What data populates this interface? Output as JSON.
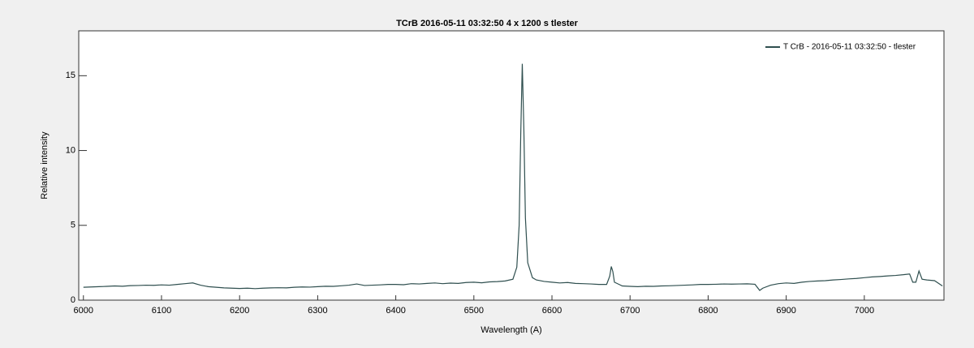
{
  "chart_data": {
    "type": "line",
    "title": "TCrB  2016-05-11 03:32:50  4 x 1200 s  tlester",
    "x_label": "Wavelength (A)",
    "y_label": "Relative intensity",
    "x": [
      6000,
      6010,
      6020,
      6030,
      6040,
      6050,
      6060,
      6070,
      6080,
      6090,
      6100,
      6110,
      6120,
      6130,
      6140,
      6150,
      6160,
      6170,
      6180,
      6190,
      6200,
      6210,
      6220,
      6230,
      6240,
      6250,
      6260,
      6270,
      6280,
      6290,
      6300,
      6310,
      6320,
      6330,
      6340,
      6350,
      6360,
      6370,
      6380,
      6390,
      6400,
      6410,
      6420,
      6430,
      6440,
      6450,
      6460,
      6470,
      6480,
      6490,
      6500,
      6510,
      6520,
      6530,
      6540,
      6550,
      6555,
      6558,
      6560,
      6562,
      6564,
      6566,
      6569,
      6575,
      6580,
      6590,
      6600,
      6610,
      6620,
      6630,
      6640,
      6650,
      6660,
      6670,
      6674,
      6676,
      6678,
      6680,
      6690,
      6700,
      6710,
      6720,
      6730,
      6740,
      6750,
      6760,
      6770,
      6780,
      6790,
      6800,
      6810,
      6820,
      6830,
      6840,
      6850,
      6860,
      6866,
      6870,
      6880,
      6890,
      6900,
      6910,
      6920,
      6930,
      6940,
      6950,
      6960,
      6970,
      6980,
      6990,
      7000,
      7010,
      7020,
      7030,
      7040,
      7050,
      7058,
      7062,
      7066,
      7070,
      7074,
      7080,
      7090,
      7100
    ],
    "series": [
      {
        "name": "T CrB - 2016-05-11  03:32:50 - tlester",
        "color": "#2f4f4f",
        "values": [
          0.86,
          0.88,
          0.9,
          0.92,
          0.95,
          0.93,
          0.97,
          0.98,
          1.0,
          0.99,
          1.02,
          1.0,
          1.05,
          1.1,
          1.15,
          1.0,
          0.9,
          0.86,
          0.82,
          0.8,
          0.78,
          0.8,
          0.77,
          0.8,
          0.82,
          0.83,
          0.82,
          0.86,
          0.88,
          0.87,
          0.9,
          0.93,
          0.92,
          0.96,
          1.0,
          1.08,
          0.98,
          1.0,
          1.02,
          1.05,
          1.05,
          1.03,
          1.1,
          1.08,
          1.12,
          1.15,
          1.1,
          1.14,
          1.12,
          1.18,
          1.2,
          1.16,
          1.22,
          1.24,
          1.28,
          1.4,
          2.2,
          5,
          11,
          15.8,
          11.5,
          5.5,
          2.5,
          1.5,
          1.35,
          1.25,
          1.2,
          1.15,
          1.18,
          1.12,
          1.1,
          1.08,
          1.05,
          1.05,
          1.6,
          2.25,
          1.9,
          1.2,
          0.95,
          0.92,
          0.9,
          0.93,
          0.92,
          0.95,
          0.96,
          0.98,
          1.0,
          1.02,
          1.05,
          1.05,
          1.06,
          1.08,
          1.07,
          1.08,
          1.09,
          1.06,
          0.65,
          0.8,
          1.0,
          1.1,
          1.15,
          1.12,
          1.2,
          1.25,
          1.28,
          1.3,
          1.35,
          1.38,
          1.42,
          1.45,
          1.5,
          1.55,
          1.58,
          1.62,
          1.65,
          1.7,
          1.75,
          1.2,
          1.2,
          1.95,
          1.4,
          1.35,
          1.3,
          0.95
        ]
      }
    ],
    "xlim": [
      5994,
      7102
    ],
    "ylim": [
      0,
      18
    ],
    "xticks": [
      6000,
      6100,
      6200,
      6300,
      6400,
      6500,
      6600,
      6700,
      6800,
      6900,
      7000
    ],
    "yticks": [
      0,
      5,
      10,
      15
    ],
    "grid": false,
    "legend": "upper right"
  }
}
